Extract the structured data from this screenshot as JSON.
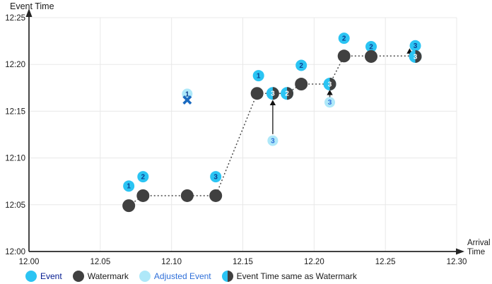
{
  "colors": {
    "event": "#2bc4f3",
    "watermark": "#404040",
    "adjusted": "#aee8f9",
    "event_number": "#0d3d8f",
    "adjusted_number": "#2e6fd9",
    "same_number": "#ffffff",
    "dropped_x": "#1a6ac0",
    "grid": "#e8e8e8",
    "axis": "#262626",
    "dotted_line": "#4a4a4a",
    "tick_text": "#1a1a1a",
    "legend_event_text": "#00188f",
    "legend_adjusted_text": "#2e6fd9",
    "legend_dark_text": "#1a1a1a"
  },
  "legend": {
    "items": [
      {
        "key": "event",
        "label": "Event"
      },
      {
        "key": "watermark",
        "label": "Watermark"
      },
      {
        "key": "adjusted",
        "label": "Adjusted Event"
      },
      {
        "key": "same",
        "label": "Event Time same as Watermark"
      }
    ]
  },
  "chart_data": {
    "type": "scatter",
    "title": "",
    "xlabel": "Arrival Time",
    "ylabel": "Event Time",
    "x_axis": {
      "ticks": [
        {
          "label": "12.00",
          "v": 12.0
        },
        {
          "label": "12.05",
          "v": 12.05
        },
        {
          "label": "12.10",
          "v": 12.1
        },
        {
          "label": "12.15",
          "v": 12.15
        },
        {
          "label": "12.20",
          "v": 12.2
        },
        {
          "label": "12.25",
          "v": 12.25
        },
        {
          "label": "12.30",
          "v": 12.3
        }
      ],
      "range": [
        12.0,
        12.3
      ]
    },
    "y_axis": {
      "ticks": [
        {
          "label": "12:00",
          "m": 0
        },
        {
          "label": "12:05",
          "m": 5
        },
        {
          "label": "12:10",
          "m": 10
        },
        {
          "label": "12:15",
          "m": 15
        },
        {
          "label": "12:20",
          "m": 20
        },
        {
          "label": "12:25",
          "m": 25
        }
      ],
      "range_minutes": [
        0,
        25
      ],
      "grid": true
    },
    "series": [
      {
        "name": "Event",
        "kind": "event",
        "points": [
          {
            "label": "1",
            "arrival": 12.07,
            "event_min": 7.0
          },
          {
            "label": "2",
            "arrival": 12.08,
            "event_min": 8.0
          },
          {
            "label": "3",
            "arrival": 12.131,
            "event_min": 8.0
          },
          {
            "label": "1",
            "arrival": 12.161,
            "event_min": 18.8
          },
          {
            "label": "2",
            "arrival": 12.191,
            "event_min": 19.9
          },
          {
            "label": "2",
            "arrival": 12.221,
            "event_min": 22.8
          },
          {
            "label": "2",
            "arrival": 12.24,
            "event_min": 21.9
          },
          {
            "label": "3",
            "arrival": 12.271,
            "event_min": 22.0
          }
        ]
      },
      {
        "name": "Watermark",
        "kind": "watermark",
        "points": [
          {
            "arrival": 12.07,
            "event_min": 4.9
          },
          {
            "arrival": 12.08,
            "event_min": 5.97
          },
          {
            "arrival": 12.111,
            "event_min": 5.97
          },
          {
            "arrival": 12.131,
            "event_min": 5.97
          },
          {
            "arrival": 12.16,
            "event_min": 16.9
          },
          {
            "arrival": 12.191,
            "event_min": 17.9
          },
          {
            "arrival": 12.221,
            "event_min": 20.9
          },
          {
            "arrival": 12.24,
            "event_min": 20.85
          }
        ]
      },
      {
        "name": "Event Time same as Watermark",
        "kind": "same",
        "points": [
          {
            "label": "3",
            "arrival": 12.171,
            "event_min": 16.9
          },
          {
            "label": "2",
            "arrival": 12.181,
            "event_min": 16.9
          },
          {
            "label": "3",
            "arrival": 12.211,
            "event_min": 17.9
          },
          {
            "label": "3",
            "arrival": 12.271,
            "event_min": 20.85
          }
        ]
      },
      {
        "name": "Adjusted Event",
        "kind": "adjusted",
        "points": [
          {
            "label": "3",
            "arrival": 12.171,
            "event_min": 11.85
          },
          {
            "label": "3",
            "arrival": 12.211,
            "event_min": 15.95
          }
        ]
      }
    ],
    "dropped_event": {
      "label": "1",
      "arrival": 12.111,
      "event_min": 16.85,
      "x_mark_min": 16.2
    },
    "watermark_line": [
      [
        12.07,
        4.9
      ],
      [
        12.08,
        5.97
      ],
      [
        12.111,
        5.97
      ],
      [
        12.131,
        5.97
      ],
      [
        12.16,
        16.9
      ],
      [
        12.181,
        16.9
      ],
      [
        12.191,
        17.9
      ],
      [
        12.211,
        17.9
      ],
      [
        12.221,
        20.9
      ],
      [
        12.271,
        20.9
      ]
    ],
    "arrows": [
      {
        "arrival": 12.171,
        "from_min": 12.55,
        "to_min": 16.2
      },
      {
        "arrival": 12.211,
        "from_min": 16.35,
        "to_min": 17.3
      },
      {
        "arrival": 12.267,
        "from_min": 21.05,
        "to_min": 21.72
      }
    ],
    "legend_position": "bottom"
  }
}
